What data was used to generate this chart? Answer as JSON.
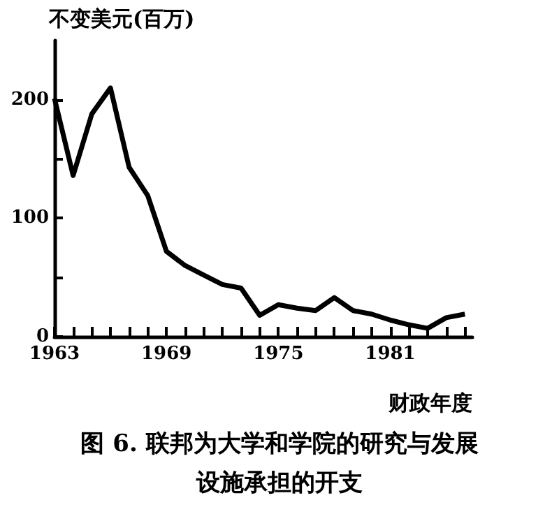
{
  "chart_data": {
    "type": "line",
    "title": "图 6. 联邦为大学和学院的研究与发展设施承担的开支",
    "ylabel": "不变美元(百万)",
    "xlabel": "财政年度",
    "x": [
      1963,
      1964,
      1965,
      1966,
      1967,
      1968,
      1969,
      1970,
      1971,
      1972,
      1973,
      1974,
      1975,
      1976,
      1977,
      1978,
      1979,
      1980,
      1981,
      1982,
      1983,
      1984,
      1985
    ],
    "series": [
      {
        "color": "#000000",
        "values": [
          201,
          136,
          188,
          210,
          143,
          119,
          72,
          60,
          52,
          44,
          41,
          18,
          27,
          24,
          22,
          33,
          22,
          19,
          14,
          10,
          7,
          16,
          19
        ]
      }
    ],
    "xlim": [
      1963,
      1985.4
    ],
    "xticks": [
      1963,
      {
        "value": 1964,
        "label": null
      },
      {
        "value": 1965,
        "label": null
      },
      {
        "value": 1966,
        "label": null
      },
      {
        "value": 1967,
        "label": null
      },
      {
        "value": 1968,
        "label": null
      },
      1969,
      {
        "value": 1970,
        "label": null
      },
      {
        "value": 1971,
        "label": null
      },
      {
        "value": 1972,
        "label": null
      },
      {
        "value": 1973,
        "label": null
      },
      {
        "value": 1974,
        "label": null
      },
      1975,
      {
        "value": 1976,
        "label": null
      },
      {
        "value": 1977,
        "label": null
      },
      {
        "value": 1978,
        "label": null
      },
      {
        "value": 1979,
        "label": null
      },
      {
        "value": 1980,
        "label": null
      },
      1981,
      {
        "value": 1982,
        "label": null
      },
      {
        "value": 1983,
        "label": null
      },
      {
        "value": 1984,
        "label": null
      },
      {
        "value": 1985,
        "label": null
      }
    ],
    "ylim": [
      0,
      250
    ],
    "yticks": [
      0,
      {
        "value": 50,
        "label": null
      },
      100,
      {
        "value": 150,
        "label": null
      },
      200
    ],
    "grid": false,
    "marker": "none",
    "line_style": "solid"
  }
}
